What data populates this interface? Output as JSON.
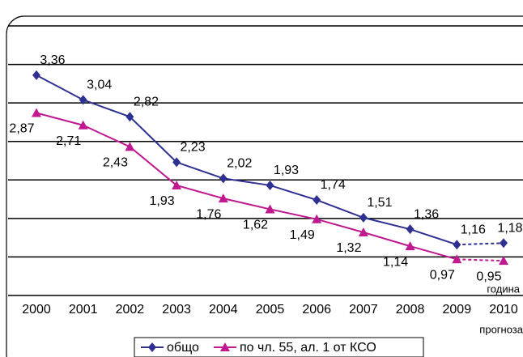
{
  "chart_data": {
    "type": "line",
    "categories": [
      "2000",
      "2001",
      "2002",
      "2003",
      "2004",
      "2005",
      "2006",
      "2007",
      "2008",
      "2009",
      "2010"
    ],
    "series": [
      {
        "name": "общо",
        "color": "#2e3192",
        "marker": "diamond",
        "values": [
          3.36,
          3.04,
          2.82,
          2.23,
          2.02,
          1.93,
          1.74,
          1.51,
          1.36,
          1.16,
          1.18
        ],
        "value_labels": [
          "3,36",
          "3,04",
          "2,82",
          "2,23",
          "2,02",
          "1,93",
          "1,74",
          "1,51",
          "1,36",
          "1,16",
          "1,18"
        ]
      },
      {
        "name": "по чл. 55, ал. 1 от КСО",
        "color": "#c0188f",
        "marker": "triangle",
        "values": [
          2.87,
          2.71,
          2.43,
          1.93,
          1.76,
          1.62,
          1.49,
          1.32,
          1.14,
          0.97,
          0.95
        ],
        "value_labels": [
          "2,87",
          "2,71",
          "2,43",
          "1,93",
          "1,76",
          "1,62",
          "1,49",
          "1,32",
          "1,14",
          "0,97",
          "0,95"
        ]
      }
    ],
    "ylim": [
      0.5,
      4
    ],
    "ygrid": [
      1,
      1.5,
      2,
      2.5,
      3,
      3.5,
      4
    ],
    "grid": true,
    "dashed_last_segment": true,
    "annotations": [
      "година",
      "прогноза"
    ],
    "legend": "bottom"
  }
}
